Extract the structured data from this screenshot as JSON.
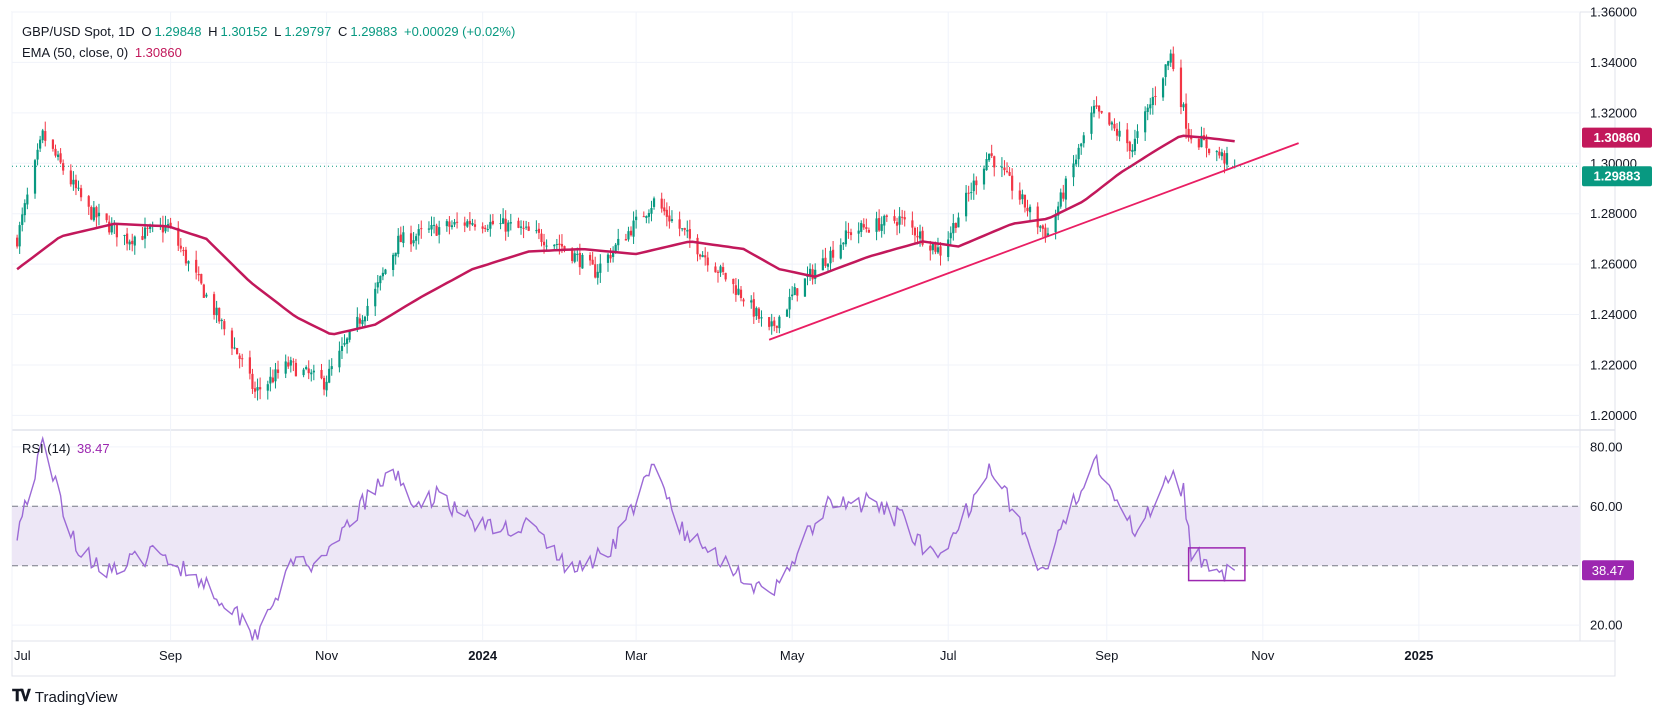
{
  "header": {
    "symbol": "GBP/USD Spot, 1D",
    "open_label": "O",
    "open": "1.29848",
    "high_label": "H",
    "high": "1.30152",
    "low_label": "L",
    "low": "1.29797",
    "close_label": "C",
    "close": "1.29883",
    "change": "+0.00029 (+0.02%)"
  },
  "ema_legend": {
    "label": "EMA (50, close, 0)",
    "value": "1.30860"
  },
  "rsi_legend": {
    "label": "RSI (14)",
    "value": "38.47"
  },
  "branding": {
    "name": "TradingView"
  },
  "colors": {
    "up": "#089981",
    "down": "#f23645",
    "ema": "#c2185b",
    "trendline": "#e91e63",
    "rsi": "#9c6ad6",
    "rsi_band": "#ede7f6",
    "box": "#9c27b0",
    "grid": "#f0f3fa"
  },
  "chart_data": [
    {
      "type": "candlestick",
      "title": "GBP/USD Spot, 1D",
      "x_ticks": [
        "Jul",
        "Sep",
        "Nov",
        "2024",
        "Mar",
        "May",
        "Jul",
        "Sep",
        "Nov",
        "2025"
      ],
      "y_ticks": [
        "1.20000",
        "1.22000",
        "1.24000",
        "1.26000",
        "1.28000",
        "1.30000",
        "1.32000",
        "1.34000",
        "1.36000"
      ],
      "ylim": [
        1.195,
        1.36
      ],
      "last_price_label": "1.29883",
      "ema_label": "1.30860",
      "trendline": {
        "from": [
          "2024-04-22",
          1.23
        ],
        "to": [
          "2024-11-15",
          1.308
        ]
      },
      "series": [
        {
          "name": "EMA (50, close, 0)",
          "points": [
            [
              "2023-07-03",
              1.258
            ],
            [
              "2023-07-20",
              1.271
            ],
            [
              "2023-08-10",
              1.276
            ],
            [
              "2023-08-31",
              1.275
            ],
            [
              "2023-09-15",
              1.27
            ],
            [
              "2023-10-02",
              1.253
            ],
            [
              "2023-10-20",
              1.239
            ],
            [
              "2023-11-03",
              1.232
            ],
            [
              "2023-11-20",
              1.236
            ],
            [
              "2023-12-08",
              1.247
            ],
            [
              "2023-12-28",
              1.258
            ],
            [
              "2024-01-19",
              1.265
            ],
            [
              "2024-02-09",
              1.266
            ],
            [
              "2024-03-01",
              1.264
            ],
            [
              "2024-03-22",
              1.269
            ],
            [
              "2024-04-12",
              1.266
            ],
            [
              "2024-04-26",
              1.258
            ],
            [
              "2024-05-10",
              1.255
            ],
            [
              "2024-05-31",
              1.263
            ],
            [
              "2024-06-21",
              1.269
            ],
            [
              "2024-07-05",
              1.267
            ],
            [
              "2024-07-26",
              1.276
            ],
            [
              "2024-08-09",
              1.278
            ],
            [
              "2024-08-23",
              1.285
            ],
            [
              "2024-09-06",
              1.296
            ],
            [
              "2024-09-20",
              1.305
            ],
            [
              "2024-09-30",
              1.311
            ],
            [
              "2024-10-11",
              1.31
            ],
            [
              "2024-10-22",
              1.3086
            ]
          ]
        }
      ],
      "ohlc_anchors": [
        [
          "2023-07-03",
          1.27
        ],
        [
          "2023-07-13",
          1.311
        ],
        [
          "2023-07-31",
          1.281
        ],
        [
          "2023-08-15",
          1.27
        ],
        [
          "2023-08-31",
          1.275
        ],
        [
          "2023-09-13",
          1.251
        ],
        [
          "2023-09-29",
          1.221
        ],
        [
          "2023-10-04",
          1.209
        ],
        [
          "2023-10-17",
          1.22
        ],
        [
          "2023-10-31",
          1.213
        ],
        [
          "2023-11-20",
          1.249
        ],
        [
          "2023-11-29",
          1.269
        ],
        [
          "2023-12-14",
          1.274
        ],
        [
          "2023-12-28",
          1.277
        ],
        [
          "2024-01-12",
          1.275
        ],
        [
          "2024-01-31",
          1.268
        ],
        [
          "2024-02-14",
          1.257
        ],
        [
          "2024-03-08",
          1.285
        ],
        [
          "2024-03-20",
          1.272
        ],
        [
          "2024-04-12",
          1.247
        ],
        [
          "2024-04-22",
          1.233
        ],
        [
          "2024-05-03",
          1.25
        ],
        [
          "2024-05-24",
          1.273
        ],
        [
          "2024-06-12",
          1.278
        ],
        [
          "2024-06-28",
          1.265
        ],
        [
          "2024-07-17",
          1.304
        ],
        [
          "2024-08-05",
          1.276
        ],
        [
          "2024-08-09",
          1.272
        ],
        [
          "2024-08-27",
          1.321
        ],
        [
          "2024-09-11",
          1.306
        ],
        [
          "2024-09-26",
          1.343
        ],
        [
          "2024-10-03",
          1.312
        ],
        [
          "2024-10-21",
          1.299
        ]
      ]
    },
    {
      "type": "line",
      "title": "RSI (14)",
      "y_ticks": [
        "20.00",
        "60.00",
        "80.00"
      ],
      "ylim": [
        15,
        85
      ],
      "band": [
        40,
        60
      ],
      "last_value_label": "38.47",
      "series": [
        {
          "name": "RSI (14)",
          "points": [
            [
              "2023-07-03",
              52
            ],
            [
              "2023-07-13",
              80
            ],
            [
              "2023-07-27",
              45
            ],
            [
              "2023-08-10",
              38
            ],
            [
              "2023-08-24",
              44
            ],
            [
              "2023-09-05",
              40
            ],
            [
              "2023-09-12",
              36
            ],
            [
              "2023-09-26",
              25
            ],
            [
              "2023-10-04",
              17
            ],
            [
              "2023-10-12",
              30
            ],
            [
              "2023-10-20",
              42
            ],
            [
              "2023-10-31",
              40
            ],
            [
              "2023-11-10",
              55
            ],
            [
              "2023-11-20",
              66
            ],
            [
              "2023-11-29",
              71
            ],
            [
              "2023-12-08",
              57
            ],
            [
              "2023-12-14",
              66
            ],
            [
              "2023-12-22",
              58
            ],
            [
              "2024-01-05",
              52
            ],
            [
              "2024-01-19",
              54
            ],
            [
              "2024-02-05",
              38
            ],
            [
              "2024-02-20",
              46
            ],
            [
              "2024-03-08",
              73
            ],
            [
              "2024-03-20",
              50
            ],
            [
              "2024-04-05",
              42
            ],
            [
              "2024-04-22",
              28
            ],
            [
              "2024-05-03",
              45
            ],
            [
              "2024-05-15",
              60
            ],
            [
              "2024-05-31",
              61
            ],
            [
              "2024-06-14",
              55
            ],
            [
              "2024-06-27",
              40
            ],
            [
              "2024-07-05",
              52
            ],
            [
              "2024-07-17",
              75
            ],
            [
              "2024-07-29",
              55
            ],
            [
              "2024-08-05",
              38
            ],
            [
              "2024-08-09",
              40
            ],
            [
              "2024-08-20",
              63
            ],
            [
              "2024-08-27",
              77
            ],
            [
              "2024-09-06",
              62
            ],
            [
              "2024-09-11",
              51
            ],
            [
              "2024-09-20",
              62
            ],
            [
              "2024-09-26",
              73
            ],
            [
              "2024-10-01",
              65
            ],
            [
              "2024-10-04",
              44
            ],
            [
              "2024-10-10",
              42
            ],
            [
              "2024-10-17",
              38
            ],
            [
              "2024-10-21",
              38.47
            ]
          ]
        }
      ],
      "highlight_box": {
        "from": "2024-10-03",
        "to": "2024-10-25",
        "ylim": [
          35,
          46
        ]
      }
    }
  ]
}
